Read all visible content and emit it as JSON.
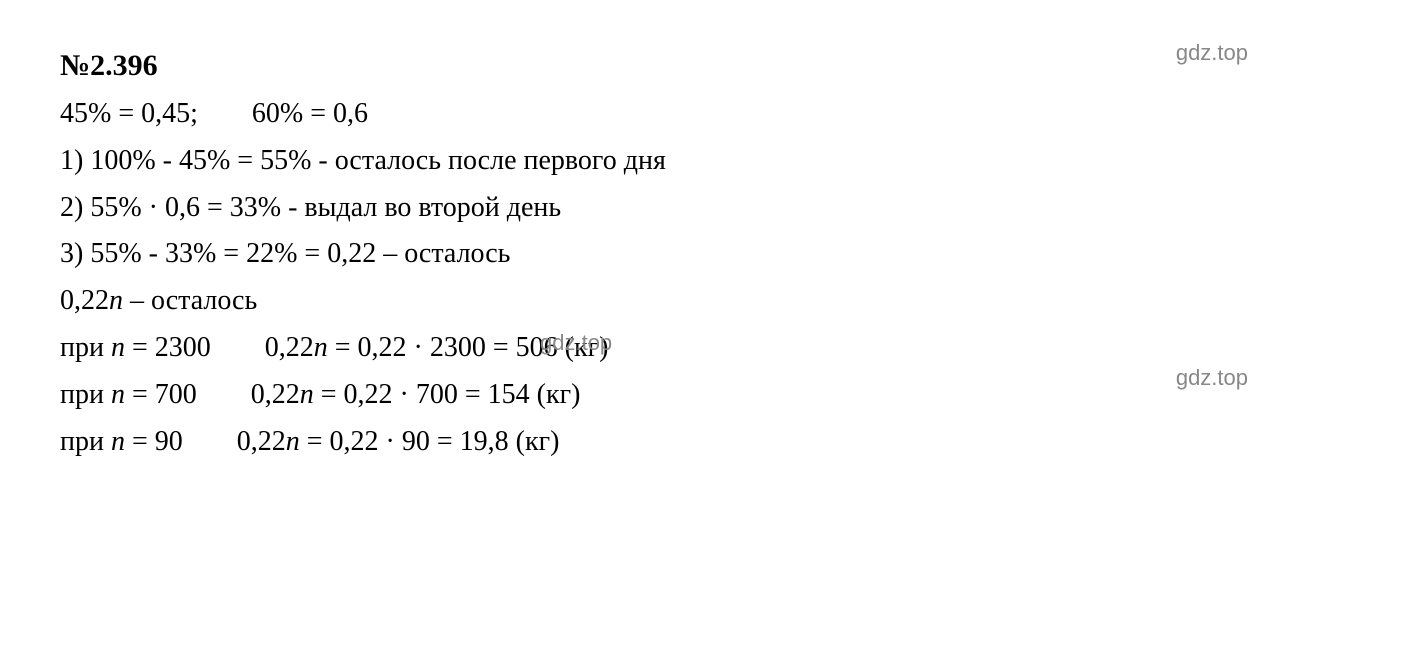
{
  "problem": {
    "number": "№2.396",
    "line1_part1": "45% = 0,45;",
    "line1_part2": "60% = 0,6",
    "step1": "1) 100% - 45% = 55% - осталось после первого дня",
    "step2": "2) 55% · 0,6 = 33% - выдал во второй день",
    "step3": "3) 55% - 33% = 22% = 0,22 – осталось",
    "remaining_prefix": "0,22",
    "remaining_var": "n",
    "remaining_suffix": " – осталось",
    "calc1_prefix": "при ",
    "calc1_var1": "n",
    "calc1_eq1": " = 2300",
    "calc1_expr_prefix": "0,22",
    "calc1_expr_var": "n",
    "calc1_expr_rest": " = 0,22 · 2300 = 506 (кг)",
    "calc2_prefix": "при ",
    "calc2_var1": "n",
    "calc2_eq1": " = 700",
    "calc2_expr_prefix": "0,22",
    "calc2_expr_var": "n",
    "calc2_expr_rest": " = 0,22 · 700 = 154 (кг)",
    "calc3_prefix": "при ",
    "calc3_var1": "n",
    "calc3_eq1": " = 90",
    "calc3_expr_prefix": "0,22",
    "calc3_expr_var": "n",
    "calc3_expr_rest": " = 0,22 · 90 = 19,8 (кг)"
  },
  "watermark": "gdz.top",
  "styling": {
    "background_color": "#ffffff",
    "text_color": "#000000",
    "watermark_color": "#888888",
    "font_family": "Times New Roman",
    "font_size": 28,
    "title_font_size": 30,
    "watermark_font_size": 22
  }
}
